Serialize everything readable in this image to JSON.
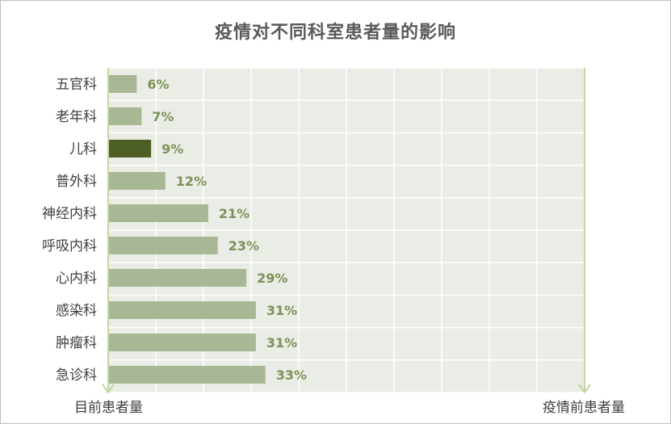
{
  "chart_data": {
    "type": "bar",
    "orientation": "horizontal",
    "title": "疫情对不同科室患者量的影响",
    "categories": [
      "五官科",
      "老年科",
      "儿科",
      "普外科",
      "神经内科",
      "呼吸内科",
      "心内科",
      "感染科",
      "肿瘤科",
      "急诊科"
    ],
    "values": [
      6,
      7,
      9,
      12,
      21,
      23,
      29,
      31,
      31,
      33
    ],
    "value_labels": [
      "6%",
      "7%",
      "9%",
      "12%",
      "21%",
      "23%",
      "29%",
      "31%",
      "31%",
      "33%"
    ],
    "highlight_category": "儿科",
    "xlim": [
      0,
      100
    ],
    "left_caption": "目前患者量",
    "right_caption": "疫情前患者量",
    "grid": true,
    "colors": {
      "bar": "#a9b894",
      "highlight": "#4e5f24",
      "value_text": "#7a9257",
      "plot_bg": "#eaede6",
      "grid": "#ffffff",
      "arrow": "#c3d6a1"
    }
  }
}
